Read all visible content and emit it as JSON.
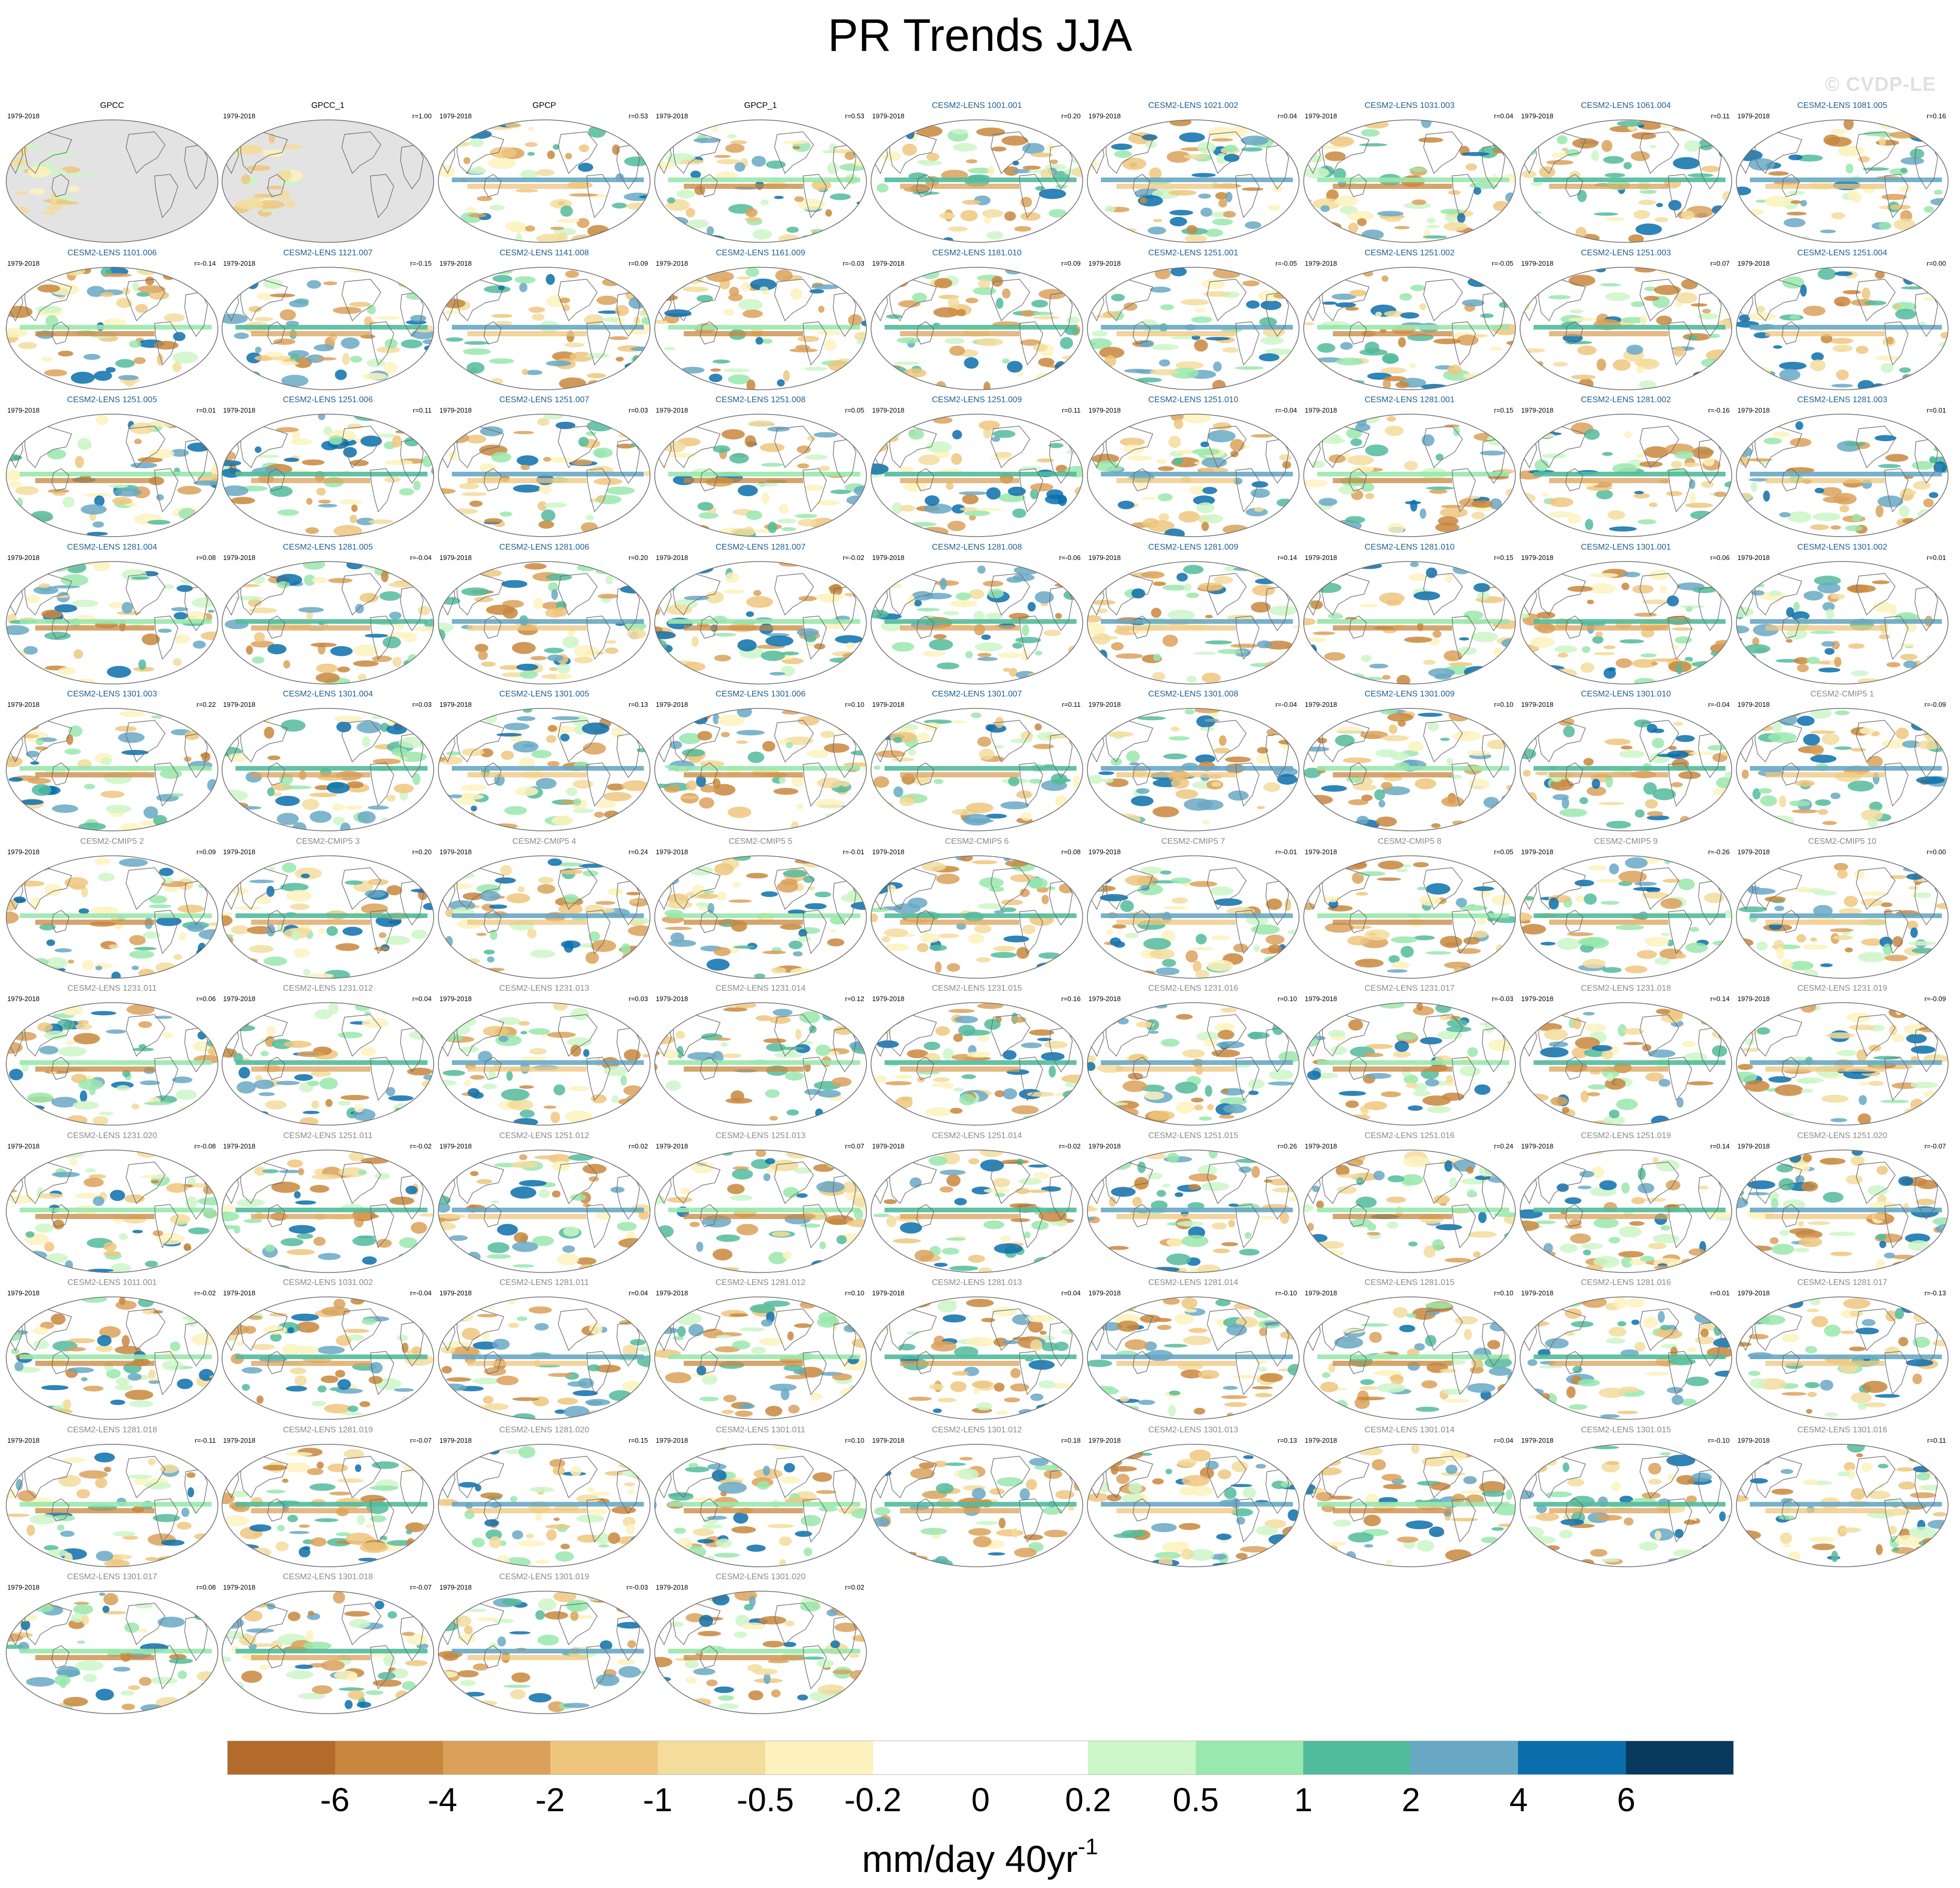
{
  "title": "PR Trends JJA",
  "watermark": "© CVDP-LE",
  "years_label": "1979-2018",
  "colors": {
    "land_missing": "#e3e3e3",
    "outline": "#707070",
    "coast": "#6a6a6a",
    "name_obs": "#000000",
    "name_lens": "#1f5f8f",
    "name_other": "#8a8a8a"
  },
  "panels": [
    {
      "name": "GPCC",
      "r": "",
      "style": "obs_missing"
    },
    {
      "name": "GPCC_1",
      "r": "r=1.00",
      "style": "obs_missing"
    },
    {
      "name": "GPCP",
      "r": "r=0.53",
      "style": "obs"
    },
    {
      "name": "GPCP_1",
      "r": "r=0.53",
      "style": "obs"
    },
    {
      "name": "CESM2-LENS 1001.001",
      "r": "r=0.20",
      "style": "lens"
    },
    {
      "name": "CESM2-LENS 1021.002",
      "r": "r=0.04",
      "style": "lens"
    },
    {
      "name": "CESM2-LENS 1031.003",
      "r": "r=0.04",
      "style": "lens"
    },
    {
      "name": "CESM2-LENS 1061.004",
      "r": "r=0.11",
      "style": "lens"
    },
    {
      "name": "CESM2-LENS 1081.005",
      "r": "r=0.16",
      "style": "lens"
    },
    {
      "name": "CESM2-LENS 1101.006",
      "r": "r=-0.14",
      "style": "lens"
    },
    {
      "name": "CESM2-LENS 1121.007",
      "r": "r=-0.15",
      "style": "lens"
    },
    {
      "name": "CESM2-LENS 1141.008",
      "r": "r=0.09",
      "style": "lens"
    },
    {
      "name": "CESM2-LENS 1161.009",
      "r": "r=-0.03",
      "style": "lens"
    },
    {
      "name": "CESM2-LENS 1181.010",
      "r": "r=0.09",
      "style": "lens"
    },
    {
      "name": "CESM2-LENS 1251.001",
      "r": "r=-0.05",
      "style": "lens"
    },
    {
      "name": "CESM2-LENS 1251.002",
      "r": "r=-0.05",
      "style": "lens"
    },
    {
      "name": "CESM2-LENS 1251.003",
      "r": "r=0.07",
      "style": "lens"
    },
    {
      "name": "CESM2-LENS 1251.004",
      "r": "r=0.00",
      "style": "lens"
    },
    {
      "name": "CESM2-LENS 1251.005",
      "r": "r=0.01",
      "style": "lens"
    },
    {
      "name": "CESM2-LENS 1251.006",
      "r": "r=0.11",
      "style": "lens"
    },
    {
      "name": "CESM2-LENS 1251.007",
      "r": "r=0.03",
      "style": "lens"
    },
    {
      "name": "CESM2-LENS 1251.008",
      "r": "r=0.05",
      "style": "lens"
    },
    {
      "name": "CESM2-LENS 1251.009",
      "r": "r=0.11",
      "style": "lens"
    },
    {
      "name": "CESM2-LENS 1251.010",
      "r": "r=-0.04",
      "style": "lens"
    },
    {
      "name": "CESM2-LENS 1281.001",
      "r": "r=0.15",
      "style": "lens"
    },
    {
      "name": "CESM2-LENS 1281.002",
      "r": "r=-0.16",
      "style": "lens"
    },
    {
      "name": "CESM2-LENS 1281.003",
      "r": "r=0.01",
      "style": "lens"
    },
    {
      "name": "CESM2-LENS 1281.004",
      "r": "r=0.08",
      "style": "lens"
    },
    {
      "name": "CESM2-LENS 1281.005",
      "r": "r=-0.04",
      "style": "lens"
    },
    {
      "name": "CESM2-LENS 1281.006",
      "r": "r=0.20",
      "style": "lens"
    },
    {
      "name": "CESM2-LENS 1281.007",
      "r": "r=-0.02",
      "style": "lens"
    },
    {
      "name": "CESM2-LENS 1281.008",
      "r": "r=-0.06",
      "style": "lens"
    },
    {
      "name": "CESM2-LENS 1281.009",
      "r": "r=0.14",
      "style": "lens"
    },
    {
      "name": "CESM2-LENS 1281.010",
      "r": "r=0.15",
      "style": "lens"
    },
    {
      "name": "CESM2-LENS 1301.001",
      "r": "r=0.06",
      "style": "lens"
    },
    {
      "name": "CESM2-LENS 1301.002",
      "r": "r=0.01",
      "style": "lens"
    },
    {
      "name": "CESM2-LENS 1301.003",
      "r": "r=0.22",
      "style": "lens"
    },
    {
      "name": "CESM2-LENS 1301.004",
      "r": "r=0.03",
      "style": "lens"
    },
    {
      "name": "CESM2-LENS 1301.005",
      "r": "r=0.13",
      "style": "lens"
    },
    {
      "name": "CESM2-LENS 1301.006",
      "r": "r=0.10",
      "style": "lens"
    },
    {
      "name": "CESM2-LENS 1301.007",
      "r": "r=0.11",
      "style": "lens"
    },
    {
      "name": "CESM2-LENS 1301.008",
      "r": "r=-0.04",
      "style": "lens"
    },
    {
      "name": "CESM2-LENS 1301.009",
      "r": "r=0.10",
      "style": "lens"
    },
    {
      "name": "CESM2-LENS 1301.010",
      "r": "r=-0.04",
      "style": "lens"
    },
    {
      "name": "CESM2-CMIP5 1",
      "r": "r=-0.09",
      "style": "other"
    },
    {
      "name": "CESM2-CMIP5 2",
      "r": "r=0.09",
      "style": "other"
    },
    {
      "name": "CESM2-CMIP5 3",
      "r": "r=0.20",
      "style": "other"
    },
    {
      "name": "CESM2-CMIP5 4",
      "r": "r=0.24",
      "style": "other"
    },
    {
      "name": "CESM2-CMIP5 5",
      "r": "r=-0.01",
      "style": "other"
    },
    {
      "name": "CESM2-CMIP5 6",
      "r": "r=0.08",
      "style": "other"
    },
    {
      "name": "CESM2-CMIP5 7",
      "r": "r=-0.01",
      "style": "other"
    },
    {
      "name": "CESM2-CMIP5 8",
      "r": "r=0.05",
      "style": "other"
    },
    {
      "name": "CESM2-CMIP5 9",
      "r": "r=-0.26",
      "style": "other"
    },
    {
      "name": "CESM2-CMIP5 10",
      "r": "r=0.00",
      "style": "other"
    },
    {
      "name": "CESM2-LENS 1231.011",
      "r": "r=0.06",
      "style": "other"
    },
    {
      "name": "CESM2-LENS 1231.012",
      "r": "r=0.04",
      "style": "other"
    },
    {
      "name": "CESM2-LENS 1231.013",
      "r": "r=0.03",
      "style": "other"
    },
    {
      "name": "CESM2-LENS 1231.014",
      "r": "r=0.12",
      "style": "other"
    },
    {
      "name": "CESM2-LENS 1231.015",
      "r": "r=0.16",
      "style": "other"
    },
    {
      "name": "CESM2-LENS 1231.016",
      "r": "r=0.10",
      "style": "other"
    },
    {
      "name": "CESM2-LENS 1231.017",
      "r": "r=-0.03",
      "style": "other"
    },
    {
      "name": "CESM2-LENS 1231.018",
      "r": "r=0.14",
      "style": "other"
    },
    {
      "name": "CESM2-LENS 1231.019",
      "r": "r=-0.09",
      "style": "other"
    },
    {
      "name": "CESM2-LENS 1231.020",
      "r": "r=-0.08",
      "style": "other"
    },
    {
      "name": "CESM2-LENS 1251.011",
      "r": "r=-0.02",
      "style": "other"
    },
    {
      "name": "CESM2-LENS 1251.012",
      "r": "r=0.02",
      "style": "other"
    },
    {
      "name": "CESM2-LENS 1251.013",
      "r": "r=0.07",
      "style": "other"
    },
    {
      "name": "CESM2-LENS 1251.014",
      "r": "r=-0.02",
      "style": "other"
    },
    {
      "name": "CESM2-LENS 1251.015",
      "r": "r=0.26",
      "style": "other"
    },
    {
      "name": "CESM2-LENS 1251.016",
      "r": "r=0.24",
      "style": "other"
    },
    {
      "name": "CESM2-LENS 1251.019",
      "r": "r=0.14",
      "style": "other"
    },
    {
      "name": "CESM2-LENS 1251.020",
      "r": "r=-0.07",
      "style": "other"
    },
    {
      "name": "CESM2-LENS 1011.001",
      "r": "r=-0.02",
      "style": "other"
    },
    {
      "name": "CESM2-LENS 1031.002",
      "r": "r=-0.04",
      "style": "other"
    },
    {
      "name": "CESM2-LENS 1281.011",
      "r": "r=0.04",
      "style": "other"
    },
    {
      "name": "CESM2-LENS 1281.012",
      "r": "r=0.10",
      "style": "other"
    },
    {
      "name": "CESM2-LENS 1281.013",
      "r": "r=0.04",
      "style": "other"
    },
    {
      "name": "CESM2-LENS 1281.014",
      "r": "r=-0.10",
      "style": "other"
    },
    {
      "name": "CESM2-LENS 1281.015",
      "r": "r=0.10",
      "style": "other"
    },
    {
      "name": "CESM2-LENS 1281.016",
      "r": "r=0.01",
      "style": "other"
    },
    {
      "name": "CESM2-LENS 1281.017",
      "r": "r=-0.13",
      "style": "other"
    },
    {
      "name": "CESM2-LENS 1281.018",
      "r": "r=-0.11",
      "style": "other"
    },
    {
      "name": "CESM2-LENS 1281.019",
      "r": "r=-0.07",
      "style": "other"
    },
    {
      "name": "CESM2-LENS 1281.020",
      "r": "r=0.15",
      "style": "other"
    },
    {
      "name": "CESM2-LENS 1301.011",
      "r": "r=0.10",
      "style": "other"
    },
    {
      "name": "CESM2-LENS 1301.012",
      "r": "r=0.18",
      "style": "other"
    },
    {
      "name": "CESM2-LENS 1301.013",
      "r": "r=0.13",
      "style": "other"
    },
    {
      "name": "CESM2-LENS 1301.014",
      "r": "r=0.04",
      "style": "other"
    },
    {
      "name": "CESM2-LENS 1301.015",
      "r": "r=-0.10",
      "style": "other"
    },
    {
      "name": "CESM2-LENS 1301.016",
      "r": "r=0.11",
      "style": "other"
    },
    {
      "name": "CESM2-LENS 1301.017",
      "r": "r=0.08",
      "style": "other"
    },
    {
      "name": "CESM2-LENS 1301.018",
      "r": "r=-0.07",
      "style": "other"
    },
    {
      "name": "CESM2-LENS 1301.019",
      "r": "r=-0.03",
      "style": "other"
    },
    {
      "name": "CESM2-LENS 1301.020",
      "r": "r=0.02",
      "style": "other"
    }
  ],
  "colorbar": {
    "colors": [
      "#b36a2a",
      "#c8873d",
      "#dba15b",
      "#efc57e",
      "#f3dc9c",
      "#fdf2bd",
      "#ffffff",
      "#ffffff",
      "#ccf6c8",
      "#99e8ad",
      "#52bb9b",
      "#69a8c4",
      "#0b6eac",
      "#08395e"
    ],
    "tick_labels": [
      "-6",
      "-4",
      "-2",
      "-1",
      "-0.5",
      "-0.2",
      "0",
      "0.2",
      "0.5",
      "1",
      "2",
      "4",
      "6"
    ],
    "units_main": "mm/day 40yr",
    "units_sup": "-1"
  }
}
